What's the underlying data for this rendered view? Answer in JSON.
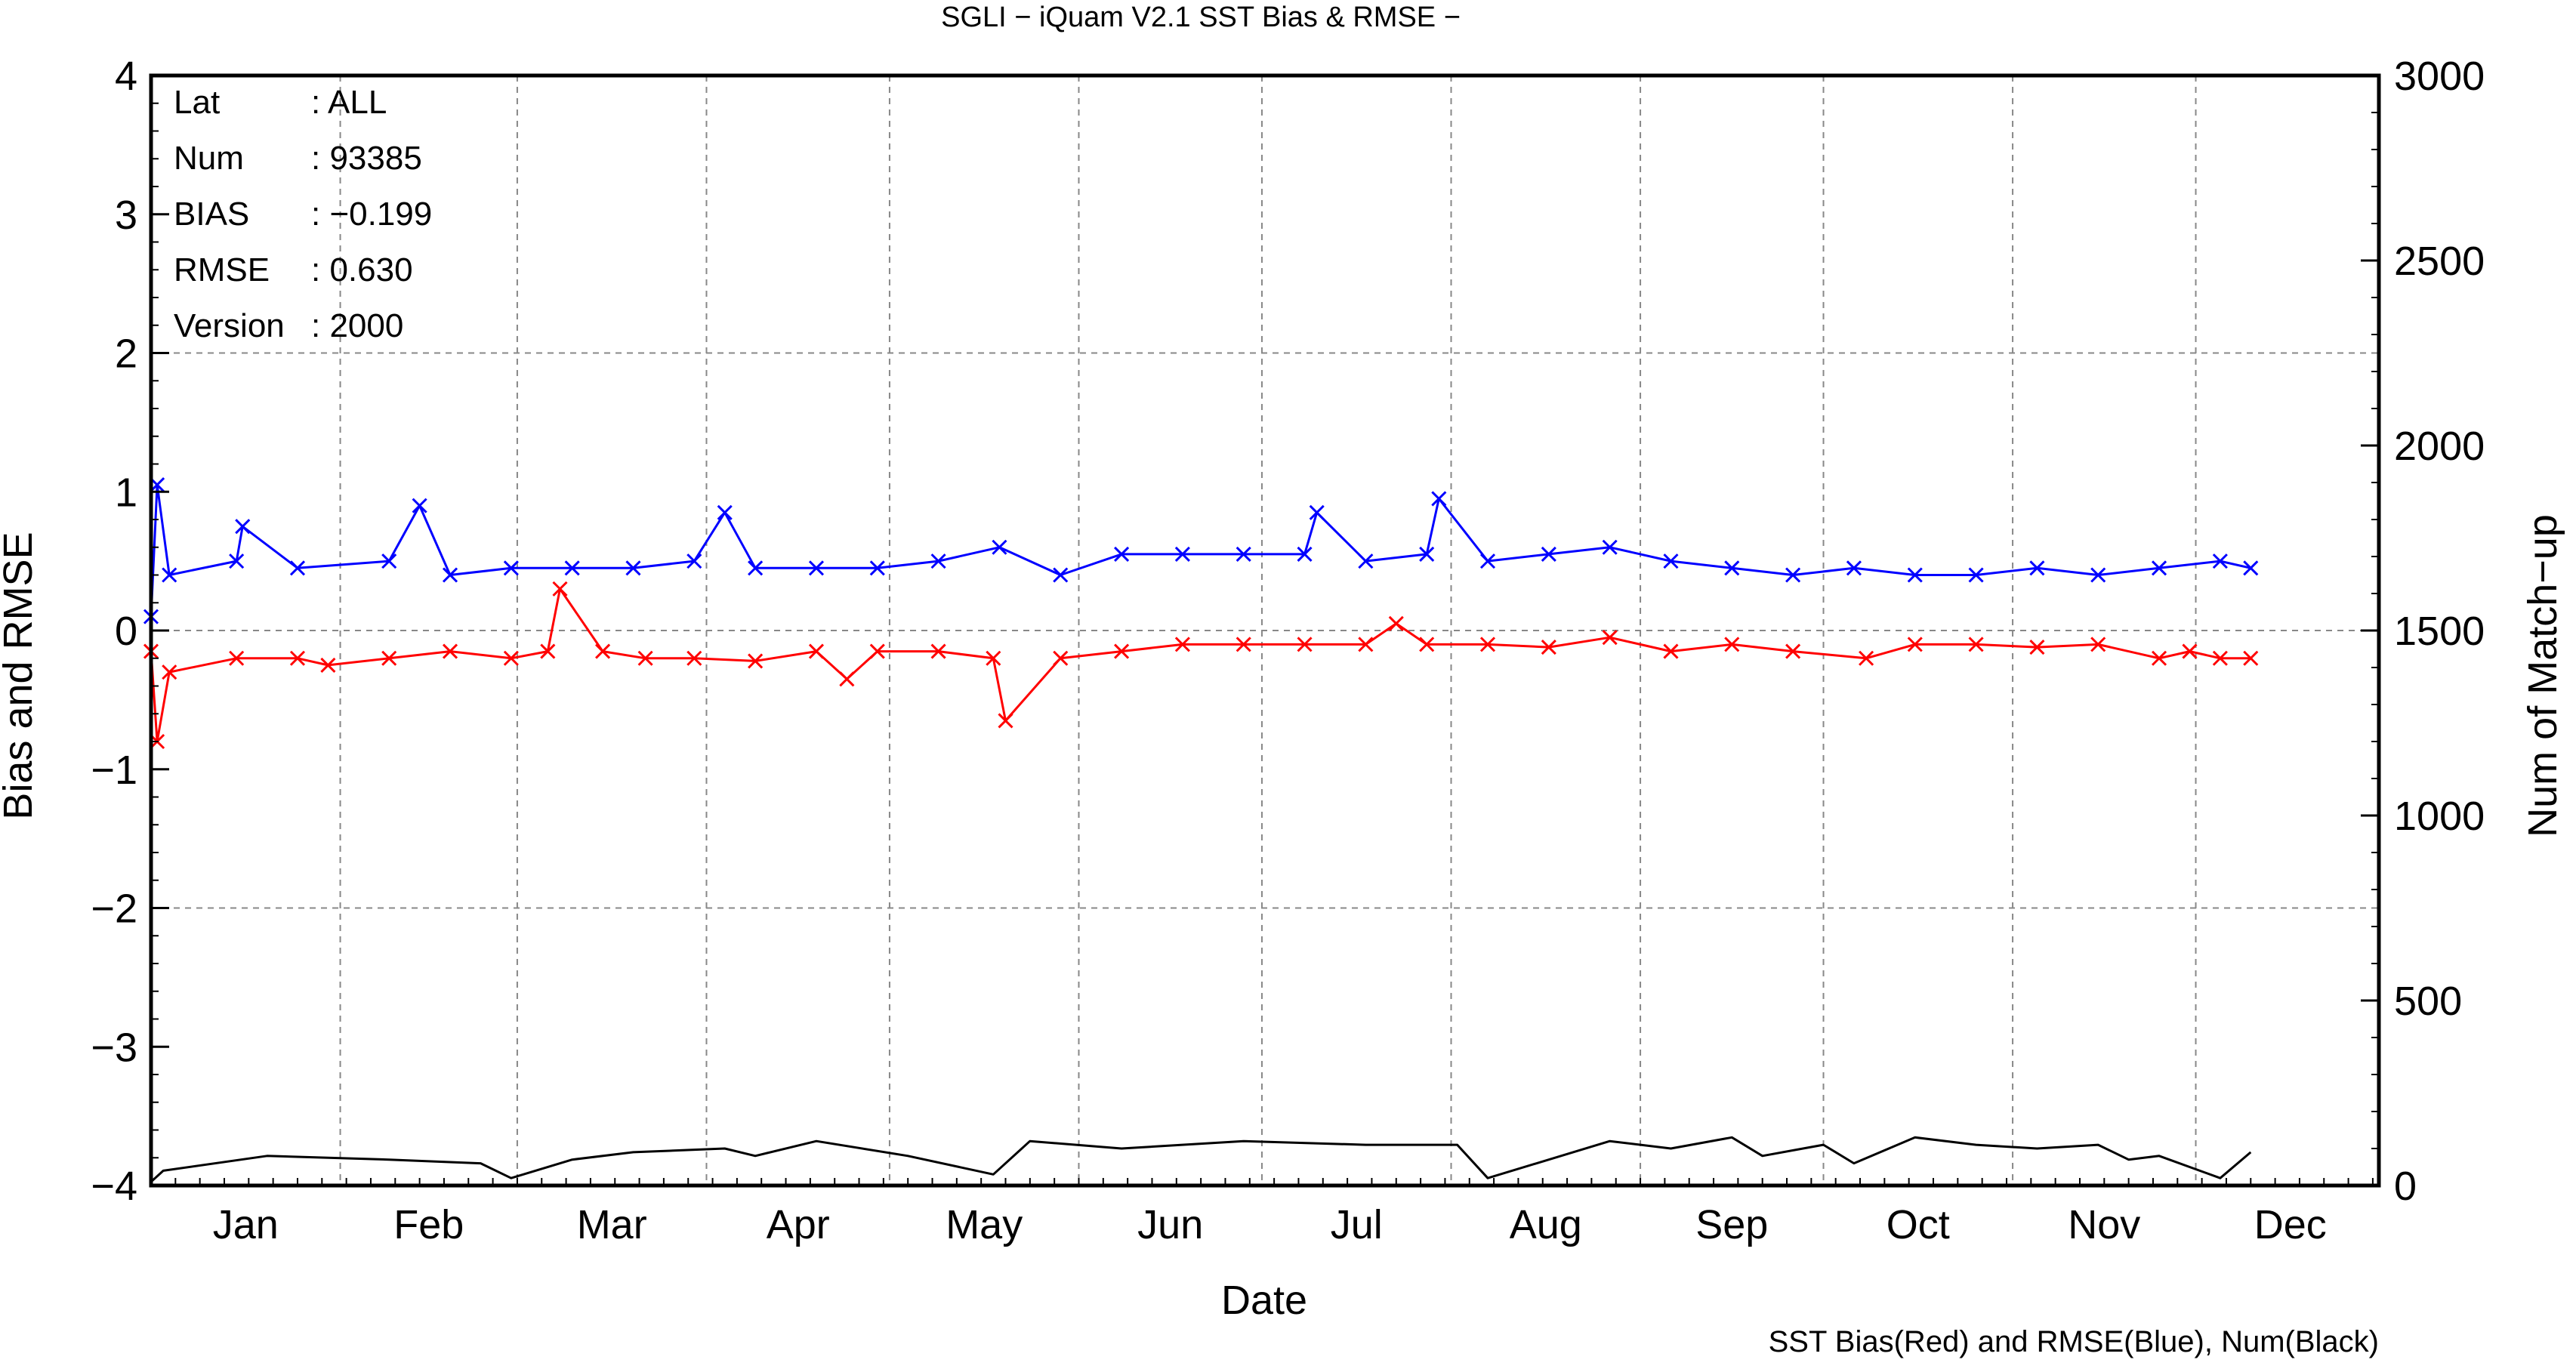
{
  "chart_data": {
    "type": "line",
    "title": "SGLI − iQuam V2.1 SST Bias & RMSE  −",
    "xlabel": "Date",
    "ylabel": "Bias and RMSE",
    "y2label": "Num of Match−up",
    "legend_note": "SST Bias(Red) and RMSE(Blue), Num(Black)",
    "x_months": [
      "Jan",
      "Feb",
      "Mar",
      "Apr",
      "May",
      "Jun",
      "Jul",
      "Aug",
      "Sep",
      "Oct",
      "Nov",
      "Dec"
    ],
    "x_range_days": [
      1,
      366
    ],
    "ylim": [
      -4,
      4
    ],
    "y2lim": [
      0,
      3000
    ],
    "y_ticks": [
      "−4",
      "−3",
      "−2",
      "−1",
      "0",
      "1",
      "2",
      "3",
      "4"
    ],
    "y2_ticks": [
      "0",
      "500",
      "1000",
      "1500",
      "2000",
      "2500",
      "3000"
    ],
    "grid": true,
    "stats": [
      {
        "key": "Lat",
        "value": ": ALL"
      },
      {
        "key": "Num",
        "value": ": 93385"
      },
      {
        "key": "BIAS",
        "value": ": −0.199"
      },
      {
        "key": "RMSE",
        "value": ": 0.630"
      },
      {
        "key": "Version",
        "value": ": 2000"
      }
    ],
    "series": [
      {
        "color": "#ff0000",
        "axis": "left",
        "marker": "x",
        "x": [
          1,
          2,
          4,
          15,
          25,
          30,
          40,
          50,
          60,
          66,
          68,
          75,
          82,
          90,
          100,
          110,
          115,
          120,
          130,
          139,
          141,
          150,
          160,
          170,
          180,
          190,
          200,
          205,
          210,
          220,
          230,
          240,
          250,
          260,
          270,
          282,
          290,
          300,
          310,
          320,
          330,
          335,
          340,
          345
        ],
        "values": [
          -0.15,
          -0.8,
          -0.3,
          -0.2,
          -0.2,
          -0.25,
          -0.2,
          -0.15,
          -0.2,
          -0.15,
          0.3,
          -0.15,
          -0.2,
          -0.2,
          -0.22,
          -0.15,
          -0.35,
          -0.15,
          -0.15,
          -0.2,
          -0.65,
          -0.2,
          -0.15,
          -0.1,
          -0.1,
          -0.1,
          -0.1,
          0.05,
          -0.1,
          -0.1,
          -0.12,
          -0.05,
          -0.15,
          -0.1,
          -0.15,
          -0.2,
          -0.1,
          -0.1,
          -0.12,
          -0.1,
          -0.2,
          -0.15,
          -0.2,
          -0.2
        ]
      },
      {
        "color": "#0000ff",
        "axis": "left",
        "marker": "x",
        "x": [
          1,
          2,
          4,
          15,
          16,
          25,
          40,
          45,
          50,
          60,
          70,
          80,
          90,
          95,
          100,
          110,
          120,
          130,
          140,
          150,
          160,
          170,
          180,
          190,
          192,
          200,
          210,
          212,
          220,
          230,
          240,
          250,
          260,
          270,
          280,
          290,
          300,
          310,
          320,
          330,
          340,
          345
        ],
        "values": [
          0.1,
          1.05,
          0.4,
          0.5,
          0.75,
          0.45,
          0.5,
          0.9,
          0.4,
          0.45,
          0.45,
          0.45,
          0.5,
          0.85,
          0.45,
          0.45,
          0.45,
          0.5,
          0.6,
          0.4,
          0.55,
          0.55,
          0.55,
          0.55,
          0.85,
          0.5,
          0.55,
          0.95,
          0.5,
          0.55,
          0.6,
          0.5,
          0.45,
          0.4,
          0.45,
          0.4,
          0.4,
          0.45,
          0.4,
          0.45,
          0.5,
          0.45
        ]
      },
      {
        "color": "#000000",
        "axis": "right",
        "marker": "none",
        "x": [
          1,
          3,
          20,
          40,
          55,
          60,
          70,
          80,
          95,
          100,
          110,
          125,
          139,
          145,
          160,
          180,
          200,
          215,
          220,
          240,
          250,
          260,
          265,
          275,
          280,
          290,
          300,
          310,
          320,
          325,
          330,
          340,
          345
        ],
        "values": [
          10,
          40,
          80,
          70,
          60,
          20,
          70,
          90,
          100,
          80,
          120,
          80,
          30,
          120,
          100,
          120,
          110,
          110,
          20,
          120,
          100,
          130,
          80,
          110,
          60,
          130,
          110,
          100,
          110,
          70,
          80,
          20,
          90
        ]
      }
    ]
  }
}
